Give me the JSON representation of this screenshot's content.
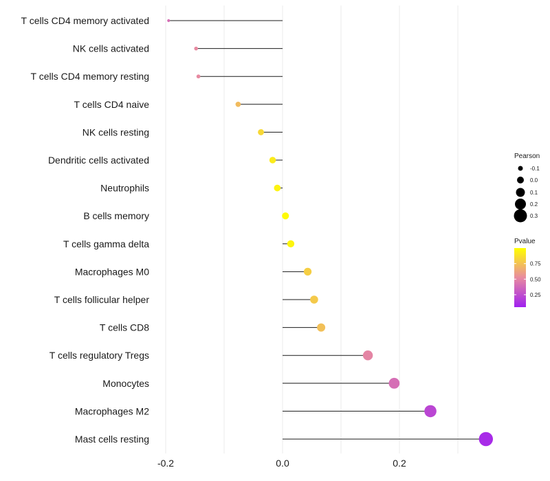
{
  "chart_data": {
    "type": "lollipop",
    "xlabel": "",
    "ylabel": "",
    "xlim": [
      -0.2,
      0.35
    ],
    "xticks": [
      -0.2,
      0.0,
      0.2
    ],
    "xtick_labels": [
      "-0.2",
      "0.0",
      "0.2"
    ],
    "grid": true,
    "categories": [
      "T cells CD4 memory activated",
      "NK cells activated",
      "T cells CD4 memory resting",
      "T cells CD4 naive",
      "NK cells resting",
      "Dendritic cells activated",
      "Neutrophils",
      "B cells memory",
      "T cells gamma delta",
      "Macrophages M0",
      "T cells follicular helper",
      "T cells CD8",
      "T cells regulatory  Tregs",
      "Monocytes",
      "Macrophages M2",
      "Mast cells resting"
    ],
    "pearson": [
      -0.195,
      -0.148,
      -0.144,
      -0.076,
      -0.037,
      -0.017,
      -0.009,
      0.005,
      0.014,
      0.043,
      0.054,
      0.066,
      0.146,
      0.191,
      0.253,
      0.348
    ],
    "pvalue": [
      0.4,
      0.52,
      0.52,
      0.72,
      0.84,
      0.92,
      0.95,
      0.98,
      0.96,
      0.8,
      0.78,
      0.74,
      0.5,
      0.4,
      0.22,
      0.1
    ],
    "legend_size": {
      "title": "Pearson",
      "labels": [
        "-0.1",
        "0.0",
        "0.1",
        "0.2",
        "0.3"
      ],
      "values": [
        -0.1,
        0.0,
        0.1,
        0.2,
        0.3
      ]
    },
    "legend_color": {
      "title": "Pvalue",
      "labels": [
        "0.75",
        "0.50",
        "0.25"
      ],
      "values": [
        0.75,
        0.5,
        0.25
      ],
      "range": [
        0.05,
        1.0
      ]
    },
    "colors": {
      "low": "#a020f0",
      "mid": "#e88ba0",
      "high": "#ffff00",
      "segment": "#1a1a1a",
      "grid": "#ebebeb"
    }
  }
}
